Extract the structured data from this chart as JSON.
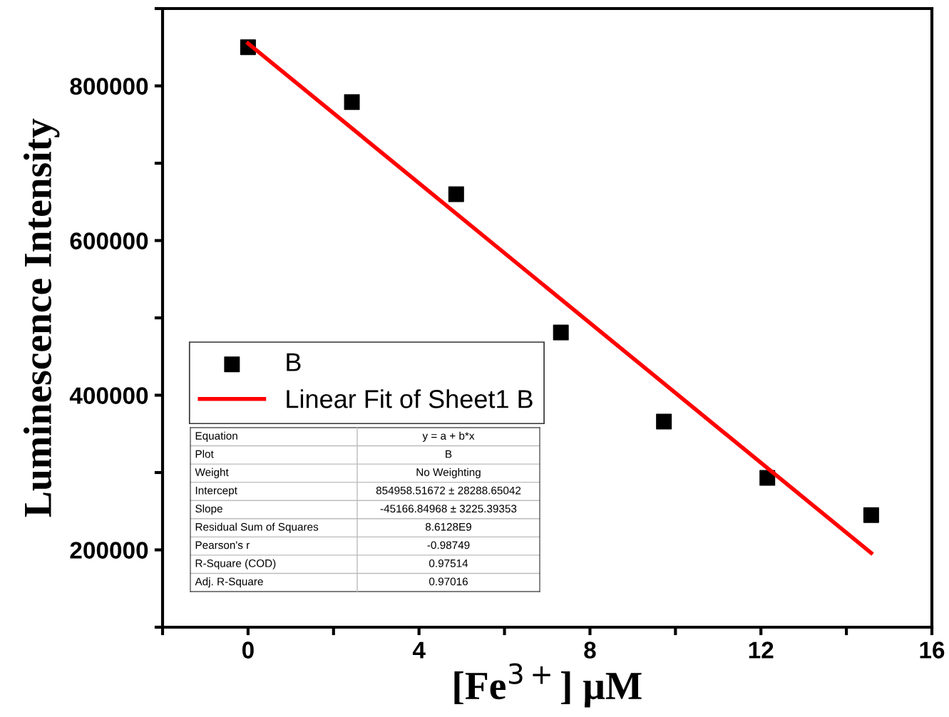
{
  "chart_data": {
    "type": "scatter",
    "xlabel": "[Fe$^{3+}$] μM",
    "ylabel": "Luminescence Intensity",
    "xlim": [
      -2,
      16
    ],
    "ylim": [
      100000,
      900000
    ],
    "xticks": [
      {
        "value": -2,
        "label": null
      },
      0,
      {
        "value": 2,
        "label": null
      },
      4,
      {
        "value": 6,
        "label": null
      },
      8,
      {
        "value": 10,
        "label": null
      },
      12,
      {
        "value": 14,
        "label": null
      },
      16
    ],
    "yticks": [
      {
        "value": 100000,
        "label": null
      },
      200000,
      {
        "value": 300000,
        "label": null
      },
      400000,
      {
        "value": 500000,
        "label": null
      },
      600000,
      {
        "value": 700000,
        "label": null
      },
      800000,
      {
        "value": 900000,
        "label": null
      }
    ],
    "grid": false,
    "legend": "left",
    "series": [
      {
        "name": "B",
        "marker": "square",
        "color": "#000000",
        "x": [
          0,
          2.43,
          4.87,
          7.32,
          9.73,
          12.15,
          14.58
        ],
        "values": [
          850000,
          779000,
          660000,
          481000,
          366000,
          293000,
          245000
        ]
      },
      {
        "name": "Linear Fit of Sheet1 B",
        "type": "line",
        "marker": "none",
        "color": "#ff0000",
        "x": [
          0,
          14.58
        ],
        "values": [
          855000,
          196000
        ]
      }
    ],
    "annotations": [
      "Equation",
      "y = a + b*x",
      "Plot",
      "B",
      "Weight",
      "No Weighting",
      "Intercept",
      "854958.51672 ± 28288.65042",
      "Slope",
      "-45166.84968 ± 3225.39353",
      "Residual Sum of Squares",
      "8.6128E9",
      "Pearson's r",
      "-0.98749",
      "R-Square (COD)",
      "0.97514",
      "Adj. R-Square",
      "0.97016"
    ]
  }
}
